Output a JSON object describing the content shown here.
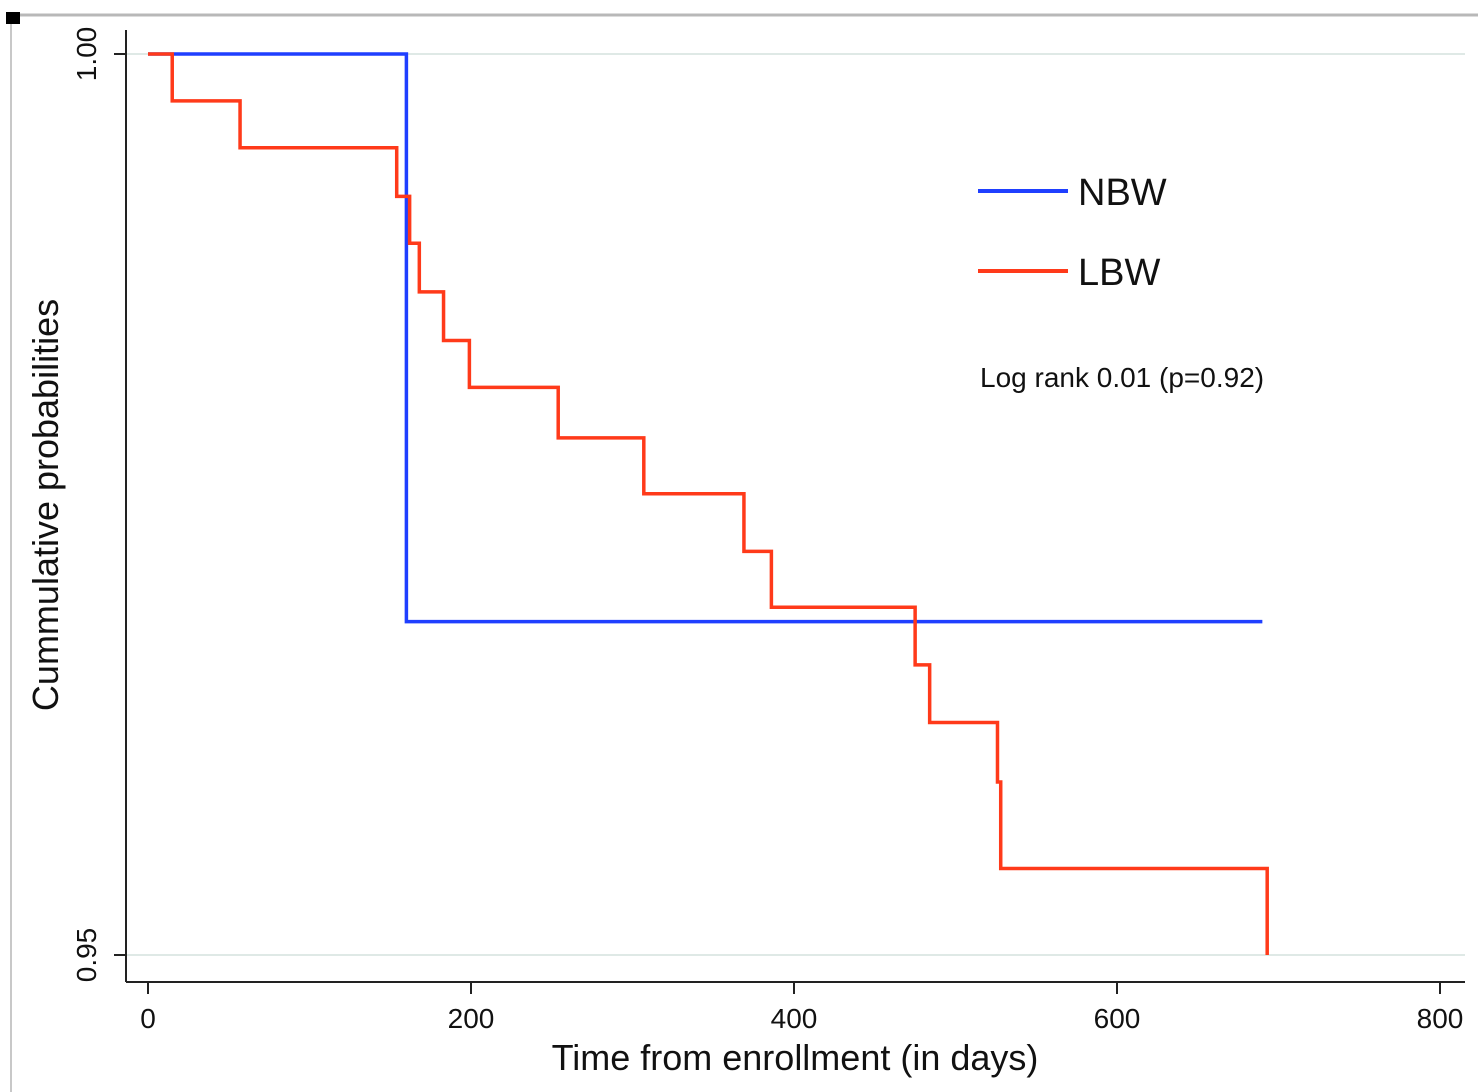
{
  "chart_data": {
    "type": "line",
    "step": true,
    "xlabel": "Time from enrollment (in days)",
    "ylabel": "Cummulative probabilities",
    "xlim": [
      0,
      800
    ],
    "ylim": [
      0.95,
      1.0
    ],
    "xticks": [
      0,
      200,
      400,
      600,
      800
    ],
    "xtick_labels": [
      "0",
      "200",
      "400",
      "600",
      "800"
    ],
    "yticks": [
      0.95,
      1.0
    ],
    "ytick_labels": [
      "0.95",
      "1.00"
    ],
    "grid": "horizontal at y ticks",
    "legend_position": "top-right",
    "annotation": "Log rank 0.01 (p=0.92)",
    "colors": {
      "NBW": "#1f3fff",
      "LBW": "#ff3a1a",
      "grid": "#dfe9e6",
      "axis": "#222222"
    },
    "series": [
      {
        "name": "NBW",
        "color": "#1f3fff",
        "x": [
          0,
          160,
          690
        ],
        "y": [
          1.0,
          0.9685,
          0.9685
        ]
      },
      {
        "name": "LBW",
        "color": "#ff3a1a",
        "x": [
          0,
          15,
          57,
          142,
          154,
          162,
          168,
          183,
          199,
          254,
          307,
          369,
          386,
          475,
          484,
          526,
          528,
          693
        ],
        "y": [
          1.0,
          0.9974,
          0.9948,
          0.9948,
          0.9921,
          0.9895,
          0.9868,
          0.9841,
          0.9815,
          0.9787,
          0.9756,
          0.9724,
          0.9693,
          0.9661,
          0.9629,
          0.9596,
          0.9548,
          0.95
        ]
      }
    ]
  }
}
